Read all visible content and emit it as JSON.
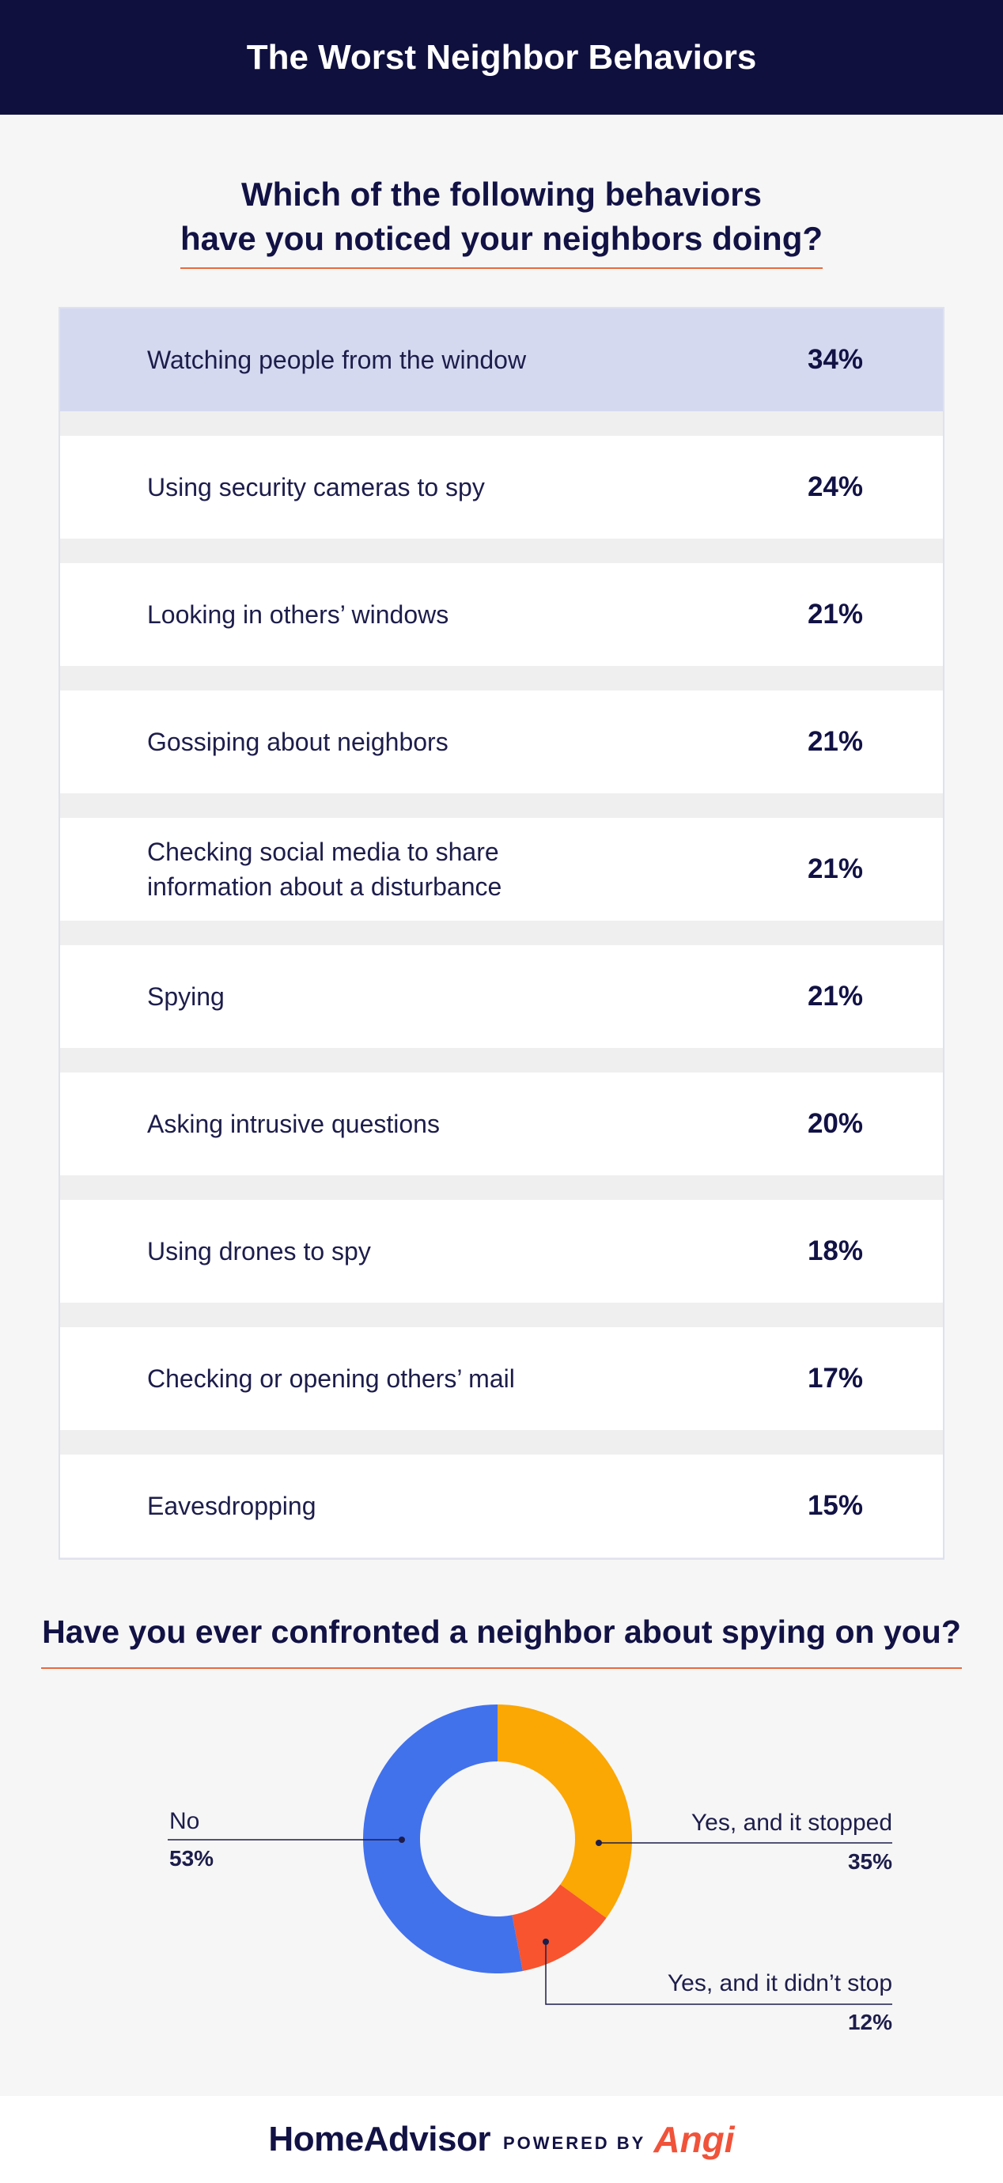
{
  "header": {
    "title": "The Worst Neighbor Behaviors"
  },
  "question1": {
    "line1": "Which of the following behaviors",
    "line2": "have you noticed your neighbors doing?"
  },
  "chart_data": [
    {
      "type": "table",
      "categories": [
        "Watching people from the window",
        "Using security cameras to spy",
        "Looking in others’ windows",
        "Gossiping about neighbors",
        "Checking social media to share information about a disturbance",
        "Spying",
        "Asking intrusive questions",
        "Using drones to spy",
        "Checking or opening others’ mail",
        "Eavesdropping"
      ],
      "values": [
        34,
        24,
        21,
        21,
        21,
        21,
        20,
        18,
        17,
        15
      ],
      "value_labels": [
        "34%",
        "24%",
        "21%",
        "21%",
        "21%",
        "21%",
        "20%",
        "18%",
        "17%",
        "15%"
      ],
      "highlight_color": "#d5d9f0"
    },
    {
      "type": "pie",
      "title": "Have you ever confronted a neighbor about spying on you?",
      "slices": [
        {
          "label": "Yes, and it stopped",
          "value": 35,
          "value_label": "35%",
          "color": "#fba704"
        },
        {
          "label": "Yes, and it didn’t stop",
          "value": 12,
          "value_label": "12%",
          "color": "#f7542f"
        },
        {
          "label": "No",
          "value": 53,
          "value_label": "53%",
          "color": "#4271ec"
        }
      ]
    }
  ],
  "row_labels_display": [
    [
      "Watching people from the window"
    ],
    [
      "Using security cameras to spy"
    ],
    [
      "Looking in others’ windows"
    ],
    [
      "Gossiping about neighbors"
    ],
    [
      "Checking social media to share",
      "information about a disturbance"
    ],
    [
      "Spying"
    ],
    [
      "Asking intrusive questions"
    ],
    [
      "Using drones to spy"
    ],
    [
      "Checking or opening others’ mail"
    ],
    [
      "Eavesdropping"
    ]
  ],
  "footer": {
    "brand": "HomeAdvisor",
    "powered_by": "POWERED BY",
    "partner": "Angi"
  }
}
